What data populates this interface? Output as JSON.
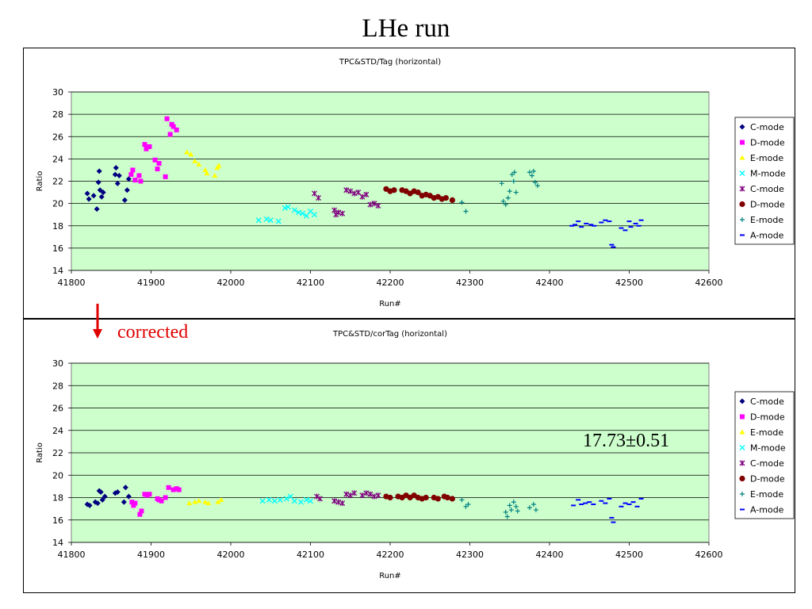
{
  "page": {
    "title": "LHe run"
  },
  "annotations": {
    "corrected": "corrected",
    "result": "17.73±0.51"
  },
  "colors": {
    "plot_bg": "#ccffcc",
    "C-mode": "#000080",
    "D-mode": "#ff00ff",
    "E-mode": "#ffff00",
    "M-mode": "#00ffff",
    "C-mode-2": "#800080",
    "D-mode-2": "#800000",
    "E-mode-2": "#008080",
    "A-mode": "#0000ff",
    "arrow": "#e00000"
  },
  "chart_data": [
    {
      "type": "scatter",
      "title": "TPC&STD/Tag (horizontal)",
      "xlabel": "Run#",
      "ylabel": "Ratio",
      "xlim": [
        41800,
        42600
      ],
      "ylim": [
        14,
        30
      ],
      "xticks": [
        41800,
        41900,
        42000,
        42100,
        42200,
        42300,
        42400,
        42500,
        42600
      ],
      "yticks": [
        14,
        16,
        18,
        20,
        22,
        24,
        26,
        28,
        30
      ],
      "grid": true,
      "legend_position": "right",
      "series": [
        {
          "name": "C-mode",
          "marker": "diamond",
          "color": "#000080",
          "points": [
            [
              41820,
              20.9
            ],
            [
              41822,
              20.4
            ],
            [
              41828,
              20.7
            ],
            [
              41832,
              19.5
            ],
            [
              41834,
              21.9
            ],
            [
              41835,
              22.9
            ],
            [
              41836,
              21.2
            ],
            [
              41838,
              20.6
            ],
            [
              41840,
              21.0
            ],
            [
              41855,
              22.6
            ],
            [
              41856,
              23.2
            ],
            [
              41858,
              21.8
            ],
            [
              41860,
              22.5
            ],
            [
              41867,
              20.3
            ],
            [
              41870,
              21.2
            ],
            [
              41872,
              22.2
            ]
          ]
        },
        {
          "name": "D-mode",
          "marker": "square",
          "color": "#ff00ff",
          "points": [
            [
              41875,
              22.6
            ],
            [
              41877,
              23.0
            ],
            [
              41880,
              22.1
            ],
            [
              41885,
              22.5
            ],
            [
              41887,
              22.0
            ],
            [
              41892,
              25.3
            ],
            [
              41894,
              24.9
            ],
            [
              41898,
              25.1
            ],
            [
              41905,
              23.9
            ],
            [
              41908,
              23.1
            ],
            [
              41910,
              23.6
            ],
            [
              41918,
              22.4
            ],
            [
              41920,
              27.6
            ],
            [
              41924,
              26.2
            ],
            [
              41926,
              27.1
            ],
            [
              41928,
              26.9
            ],
            [
              41932,
              26.6
            ]
          ]
        },
        {
          "name": "E-mode",
          "marker": "triangle",
          "color": "#ffff00",
          "points": [
            [
              41945,
              24.6
            ],
            [
              41950,
              24.4
            ],
            [
              41955,
              23.8
            ],
            [
              41960,
              23.5
            ],
            [
              41968,
              23.0
            ],
            [
              41970,
              22.7
            ],
            [
              41980,
              22.5
            ],
            [
              41983,
              23.2
            ],
            [
              41985,
              23.4
            ]
          ]
        },
        {
          "name": "M-mode",
          "marker": "x",
          "color": "#00ffff",
          "points": [
            [
              42035,
              18.5
            ],
            [
              42045,
              18.6
            ],
            [
              42050,
              18.5
            ],
            [
              42060,
              18.4
            ],
            [
              42068,
              19.6
            ],
            [
              42072,
              19.7
            ],
            [
              42080,
              19.4
            ],
            [
              42085,
              19.2
            ],
            [
              42090,
              19.1
            ],
            [
              42095,
              18.9
            ],
            [
              42100,
              19.3
            ],
            [
              42105,
              19.0
            ]
          ]
        },
        {
          "name": "C-mode",
          "marker": "star",
          "color": "#800080",
          "points": [
            [
              42105,
              20.9
            ],
            [
              42110,
              20.5
            ],
            [
              42130,
              19.4
            ],
            [
              42132,
              19.0
            ],
            [
              42135,
              19.2
            ],
            [
              42140,
              19.1
            ],
            [
              42145,
              21.2
            ],
            [
              42150,
              21.1
            ],
            [
              42155,
              20.9
            ],
            [
              42160,
              21.0
            ],
            [
              42165,
              20.6
            ],
            [
              42170,
              20.8
            ],
            [
              42175,
              19.9
            ],
            [
              42180,
              20.0
            ],
            [
              42185,
              19.8
            ]
          ]
        },
        {
          "name": "D-mode",
          "marker": "circle",
          "color": "#800000",
          "points": [
            [
              42195,
              21.3
            ],
            [
              42200,
              21.1
            ],
            [
              42205,
              21.2
            ],
            [
              42215,
              21.2
            ],
            [
              42220,
              21.1
            ],
            [
              42225,
              20.9
            ],
            [
              42230,
              21.1
            ],
            [
              42235,
              21.0
            ],
            [
              42240,
              20.7
            ],
            [
              42245,
              20.8
            ],
            [
              42250,
              20.7
            ],
            [
              42255,
              20.5
            ],
            [
              42260,
              20.6
            ],
            [
              42265,
              20.4
            ],
            [
              42270,
              20.5
            ],
            [
              42278,
              20.3
            ]
          ]
        },
        {
          "name": "E-mode",
          "marker": "plus",
          "color": "#008080",
          "points": [
            [
              42290,
              20.1
            ],
            [
              42295,
              19.3
            ],
            [
              42340,
              21.8
            ],
            [
              42342,
              20.2
            ],
            [
              42345,
              19.9
            ],
            [
              42348,
              20.5
            ],
            [
              42350,
              21.1
            ],
            [
              42353,
              22.6
            ],
            [
              42355,
              22.0
            ],
            [
              42356,
              22.8
            ],
            [
              42358,
              21.0
            ],
            [
              42375,
              22.8
            ],
            [
              42378,
              22.5
            ],
            [
              42380,
              22.9
            ],
            [
              42382,
              21.9
            ],
            [
              42385,
              21.6
            ]
          ]
        },
        {
          "name": "A-mode",
          "marker": "dash",
          "color": "#0000ff",
          "points": [
            [
              42428,
              18.0
            ],
            [
              42432,
              18.1
            ],
            [
              42436,
              18.4
            ],
            [
              42440,
              17.9
            ],
            [
              42446,
              18.2
            ],
            [
              42452,
              18.1
            ],
            [
              42456,
              18.0
            ],
            [
              42465,
              18.3
            ],
            [
              42470,
              18.5
            ],
            [
              42475,
              18.4
            ],
            [
              42478,
              16.3
            ],
            [
              42480,
              16.1
            ],
            [
              42490,
              17.8
            ],
            [
              42495,
              17.6
            ],
            [
              42500,
              18.4
            ],
            [
              42502,
              17.9
            ],
            [
              42508,
              18.2
            ],
            [
              42512,
              18.0
            ],
            [
              42515,
              18.5
            ]
          ]
        }
      ]
    },
    {
      "type": "scatter",
      "title": "TPC&STD/corTag (horizontal)",
      "xlabel": "Run#",
      "ylabel": "Ratio",
      "xlim": [
        41800,
        42600
      ],
      "ylim": [
        14,
        30
      ],
      "xticks": [
        41800,
        41900,
        42000,
        42100,
        42200,
        42300,
        42400,
        42500,
        42600
      ],
      "yticks": [
        14,
        16,
        18,
        20,
        22,
        24,
        26,
        28,
        30
      ],
      "grid": true,
      "legend_position": "right",
      "series": [
        {
          "name": "C-mode",
          "marker": "diamond",
          "color": "#000080",
          "points": [
            [
              41820,
              17.4
            ],
            [
              41823,
              17.3
            ],
            [
              41830,
              17.6
            ],
            [
              41833,
              17.5
            ],
            [
              41835,
              18.6
            ],
            [
              41837,
              18.5
            ],
            [
              41839,
              17.8
            ],
            [
              41842,
              18.1
            ],
            [
              41855,
              18.4
            ],
            [
              41858,
              18.5
            ],
            [
              41866,
              17.6
            ],
            [
              41868,
              18.9
            ],
            [
              41872,
              18.1
            ]
          ]
        },
        {
          "name": "D-mode",
          "marker": "square",
          "color": "#ff00ff",
          "points": [
            [
              41876,
              17.6
            ],
            [
              41878,
              17.3
            ],
            [
              41880,
              17.5
            ],
            [
              41886,
              16.5
            ],
            [
              41888,
              16.8
            ],
            [
              41892,
              18.3
            ],
            [
              41895,
              18.2
            ],
            [
              41898,
              18.3
            ],
            [
              41908,
              17.9
            ],
            [
              41910,
              17.8
            ],
            [
              41913,
              17.7
            ],
            [
              41918,
              18.0
            ],
            [
              41922,
              18.9
            ],
            [
              41928,
              18.7
            ],
            [
              41932,
              18.8
            ],
            [
              41935,
              18.7
            ]
          ]
        },
        {
          "name": "E-mode",
          "marker": "triangle",
          "color": "#ffff00",
          "points": [
            [
              41948,
              17.5
            ],
            [
              41955,
              17.6
            ],
            [
              41960,
              17.7
            ],
            [
              41968,
              17.6
            ],
            [
              41972,
              17.5
            ],
            [
              41984,
              17.6
            ],
            [
              41988,
              17.8
            ]
          ]
        },
        {
          "name": "M-mode",
          "marker": "x",
          "color": "#00ffff",
          "points": [
            [
              42040,
              17.7
            ],
            [
              42048,
              17.8
            ],
            [
              42055,
              17.7
            ],
            [
              42062,
              17.8
            ],
            [
              42070,
              17.9
            ],
            [
              42075,
              18.1
            ],
            [
              42080,
              17.7
            ],
            [
              42088,
              17.6
            ],
            [
              42095,
              17.8
            ],
            [
              42100,
              17.7
            ]
          ]
        },
        {
          "name": "C-mode",
          "marker": "star",
          "color": "#800080",
          "points": [
            [
              42108,
              18.1
            ],
            [
              42112,
              17.9
            ],
            [
              42130,
              17.7
            ],
            [
              42135,
              17.6
            ],
            [
              42140,
              17.5
            ],
            [
              42145,
              18.3
            ],
            [
              42150,
              18.2
            ],
            [
              42155,
              18.4
            ],
            [
              42165,
              18.2
            ],
            [
              42170,
              18.4
            ],
            [
              42175,
              18.3
            ],
            [
              42180,
              18.1
            ],
            [
              42185,
              18.2
            ]
          ]
        },
        {
          "name": "D-mode",
          "marker": "circle",
          "color": "#800000",
          "points": [
            [
              42195,
              18.1
            ],
            [
              42200,
              18.0
            ],
            [
              42210,
              18.1
            ],
            [
              42215,
              18.0
            ],
            [
              42220,
              18.2
            ],
            [
              42225,
              18.0
            ],
            [
              42230,
              18.2
            ],
            [
              42235,
              18.0
            ],
            [
              42240,
              17.9
            ],
            [
              42245,
              18.0
            ],
            [
              42255,
              18.0
            ],
            [
              42260,
              17.9
            ],
            [
              42268,
              18.1
            ],
            [
              42272,
              18.0
            ],
            [
              42278,
              17.9
            ]
          ]
        },
        {
          "name": "E-mode",
          "marker": "plus",
          "color": "#008080",
          "points": [
            [
              42290,
              17.8
            ],
            [
              42295,
              17.2
            ],
            [
              42298,
              17.4
            ],
            [
              42345,
              16.7
            ],
            [
              42347,
              16.3
            ],
            [
              42350,
              17.3
            ],
            [
              42352,
              16.9
            ],
            [
              42355,
              17.6
            ],
            [
              42358,
              17.2
            ],
            [
              42360,
              16.8
            ],
            [
              42375,
              17.1
            ],
            [
              42380,
              17.4
            ],
            [
              42383,
              16.9
            ]
          ]
        },
        {
          "name": "A-mode",
          "marker": "dash",
          "color": "#0000ff",
          "points": [
            [
              42430,
              17.3
            ],
            [
              42436,
              17.8
            ],
            [
              42440,
              17.4
            ],
            [
              42445,
              17.5
            ],
            [
              42450,
              17.6
            ],
            [
              42455,
              17.4
            ],
            [
              42465,
              17.7
            ],
            [
              42470,
              17.5
            ],
            [
              42475,
              17.9
            ],
            [
              42478,
              16.2
            ],
            [
              42480,
              15.8
            ],
            [
              42490,
              17.2
            ],
            [
              42495,
              17.5
            ],
            [
              42500,
              17.4
            ],
            [
              42505,
              17.6
            ],
            [
              42510,
              17.2
            ],
            [
              42515,
              17.9
            ]
          ]
        }
      ]
    }
  ]
}
